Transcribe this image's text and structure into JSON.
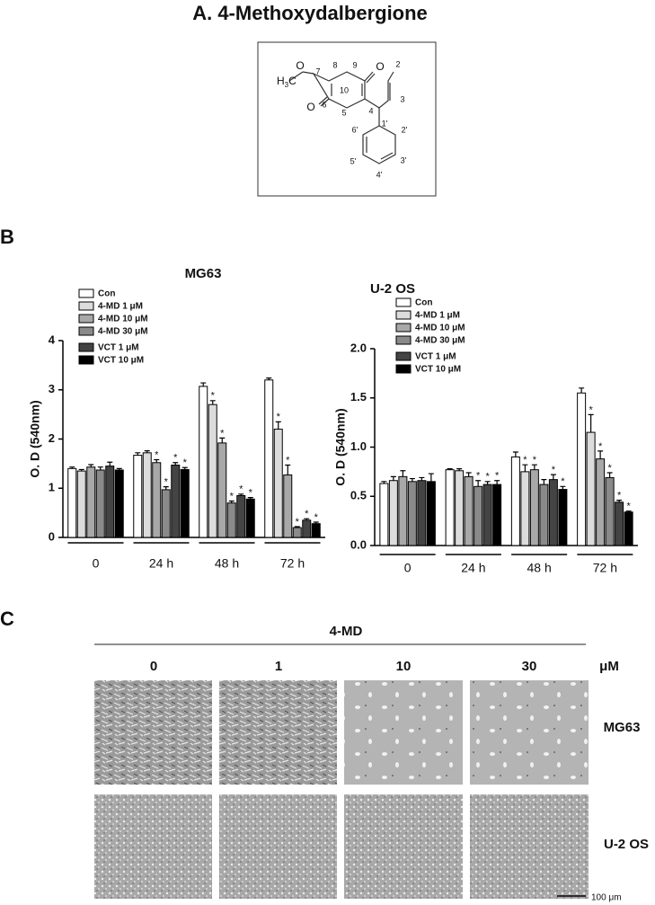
{
  "panel_a": {
    "title": "A.  4-Methoxydalbergione",
    "structure": {
      "methyl": [
        "H",
        "3",
        "C"
      ],
      "atoms": [
        "O",
        "7",
        "8",
        "9",
        "O",
        "2",
        "10",
        "3",
        "O",
        "6",
        "5",
        "4",
        "1'",
        "6'",
        "2'",
        "5'",
        "3'",
        "4'"
      ]
    }
  },
  "panel_b": {
    "label": "B"
  },
  "chart_data": [
    {
      "type": "bar",
      "title": "MG63",
      "ylabel": "O. D (540nm)",
      "categories": [
        "0",
        "24 h",
        "48 h",
        "72 h"
      ],
      "ylim": [
        0,
        4
      ],
      "yticks": [
        0,
        1,
        2,
        3,
        4
      ],
      "series": [
        {
          "name": "Con",
          "color": "#ffffff",
          "values": [
            1.4,
            1.67,
            3.07,
            3.2
          ],
          "errors": [
            0.03,
            0.05,
            0.07,
            0.04
          ],
          "stars": [
            null,
            null,
            null,
            null
          ]
        },
        {
          "name": "4-MD  1  μM",
          "color": "#dcdcdc",
          "values": [
            1.35,
            1.72,
            2.7,
            2.2
          ],
          "errors": [
            0.03,
            0.04,
            0.08,
            0.15
          ],
          "stars": [
            null,
            null,
            "*",
            "*"
          ]
        },
        {
          "name": "4-MD 10 μM",
          "color": "#a8a8a8",
          "values": [
            1.43,
            1.52,
            1.92,
            1.27
          ],
          "errors": [
            0.05,
            0.06,
            0.1,
            0.2
          ],
          "stars": [
            null,
            "*",
            "*",
            "*"
          ]
        },
        {
          "name": "4-MD 30 μM",
          "color": "#8a8a8a",
          "values": [
            1.37,
            0.97,
            0.7,
            0.2
          ],
          "errors": [
            0.06,
            0.06,
            0.04,
            0.02
          ],
          "stars": [
            null,
            "*",
            "*",
            "*"
          ]
        },
        {
          "name": "VCT  1 μM",
          "color": "#444444",
          "values": [
            1.45,
            1.47,
            0.85,
            0.35
          ],
          "errors": [
            0.08,
            0.05,
            0.03,
            0.03
          ],
          "stars": [
            null,
            "*",
            "*",
            "*"
          ]
        },
        {
          "name": "VCT 10 μM",
          "color": "#000000",
          "values": [
            1.37,
            1.38,
            0.78,
            0.28
          ],
          "errors": [
            0.03,
            0.04,
            0.03,
            0.03
          ],
          "stars": [
            null,
            "*",
            "*",
            "*"
          ]
        }
      ]
    },
    {
      "type": "bar",
      "title": "U-2 OS",
      "ylabel": "O. D (540nm)",
      "categories": [
        "0",
        "24 h",
        "48 h",
        "72 h"
      ],
      "ylim": [
        0,
        2
      ],
      "yticks": [
        {
          "value": 0,
          "label": "0.0"
        },
        0.5,
        {
          "value": 1,
          "label": "1.0"
        },
        1.5,
        {
          "value": 2,
          "label": "2.0"
        }
      ],
      "series": [
        {
          "name": "Con",
          "color": "#ffffff",
          "values": [
            0.63,
            0.77,
            0.9,
            1.55
          ],
          "errors": [
            0.02,
            0.01,
            0.05,
            0.05
          ],
          "stars": [
            null,
            null,
            null,
            null
          ]
        },
        {
          "name": "4-MD  1  μM",
          "color": "#dcdcdc",
          "values": [
            0.66,
            0.76,
            0.75,
            1.15
          ],
          "errors": [
            0.04,
            0.02,
            0.07,
            0.18
          ],
          "stars": [
            null,
            null,
            "*",
            "*"
          ]
        },
        {
          "name": "4-MD 10 μM",
          "color": "#a8a8a8",
          "values": [
            0.7,
            0.7,
            0.77,
            0.88
          ],
          "errors": [
            0.06,
            0.04,
            0.05,
            0.08
          ],
          "stars": [
            null,
            null,
            "*",
            "*"
          ]
        },
        {
          "name": "4-MD 30 μM",
          "color": "#8a8a8a",
          "values": [
            0.65,
            0.6,
            0.62,
            0.69
          ],
          "errors": [
            0.03,
            0.06,
            0.05,
            0.05
          ],
          "stars": [
            null,
            "*",
            null,
            "*"
          ]
        },
        {
          "name": "VCT  1 μM",
          "color": "#444444",
          "values": [
            0.66,
            0.62,
            0.67,
            0.44
          ],
          "errors": [
            0.03,
            0.03,
            0.05,
            0.02
          ],
          "stars": [
            null,
            "*",
            "*",
            "*"
          ]
        },
        {
          "name": "VCT 10 μM",
          "color": "#000000",
          "values": [
            0.65,
            0.62,
            0.57,
            0.34
          ],
          "errors": [
            0.08,
            0.04,
            0.03,
            0.01
          ],
          "stars": [
            null,
            "*",
            "*",
            "*"
          ]
        }
      ]
    }
  ],
  "panel_c": {
    "label": "C",
    "treatment": "4-MD",
    "doses": [
      "0",
      "1",
      "10",
      "30"
    ],
    "unit": "μM",
    "rows": [
      "MG63",
      "U-2 OS"
    ],
    "scale_bar": "100 μm"
  }
}
